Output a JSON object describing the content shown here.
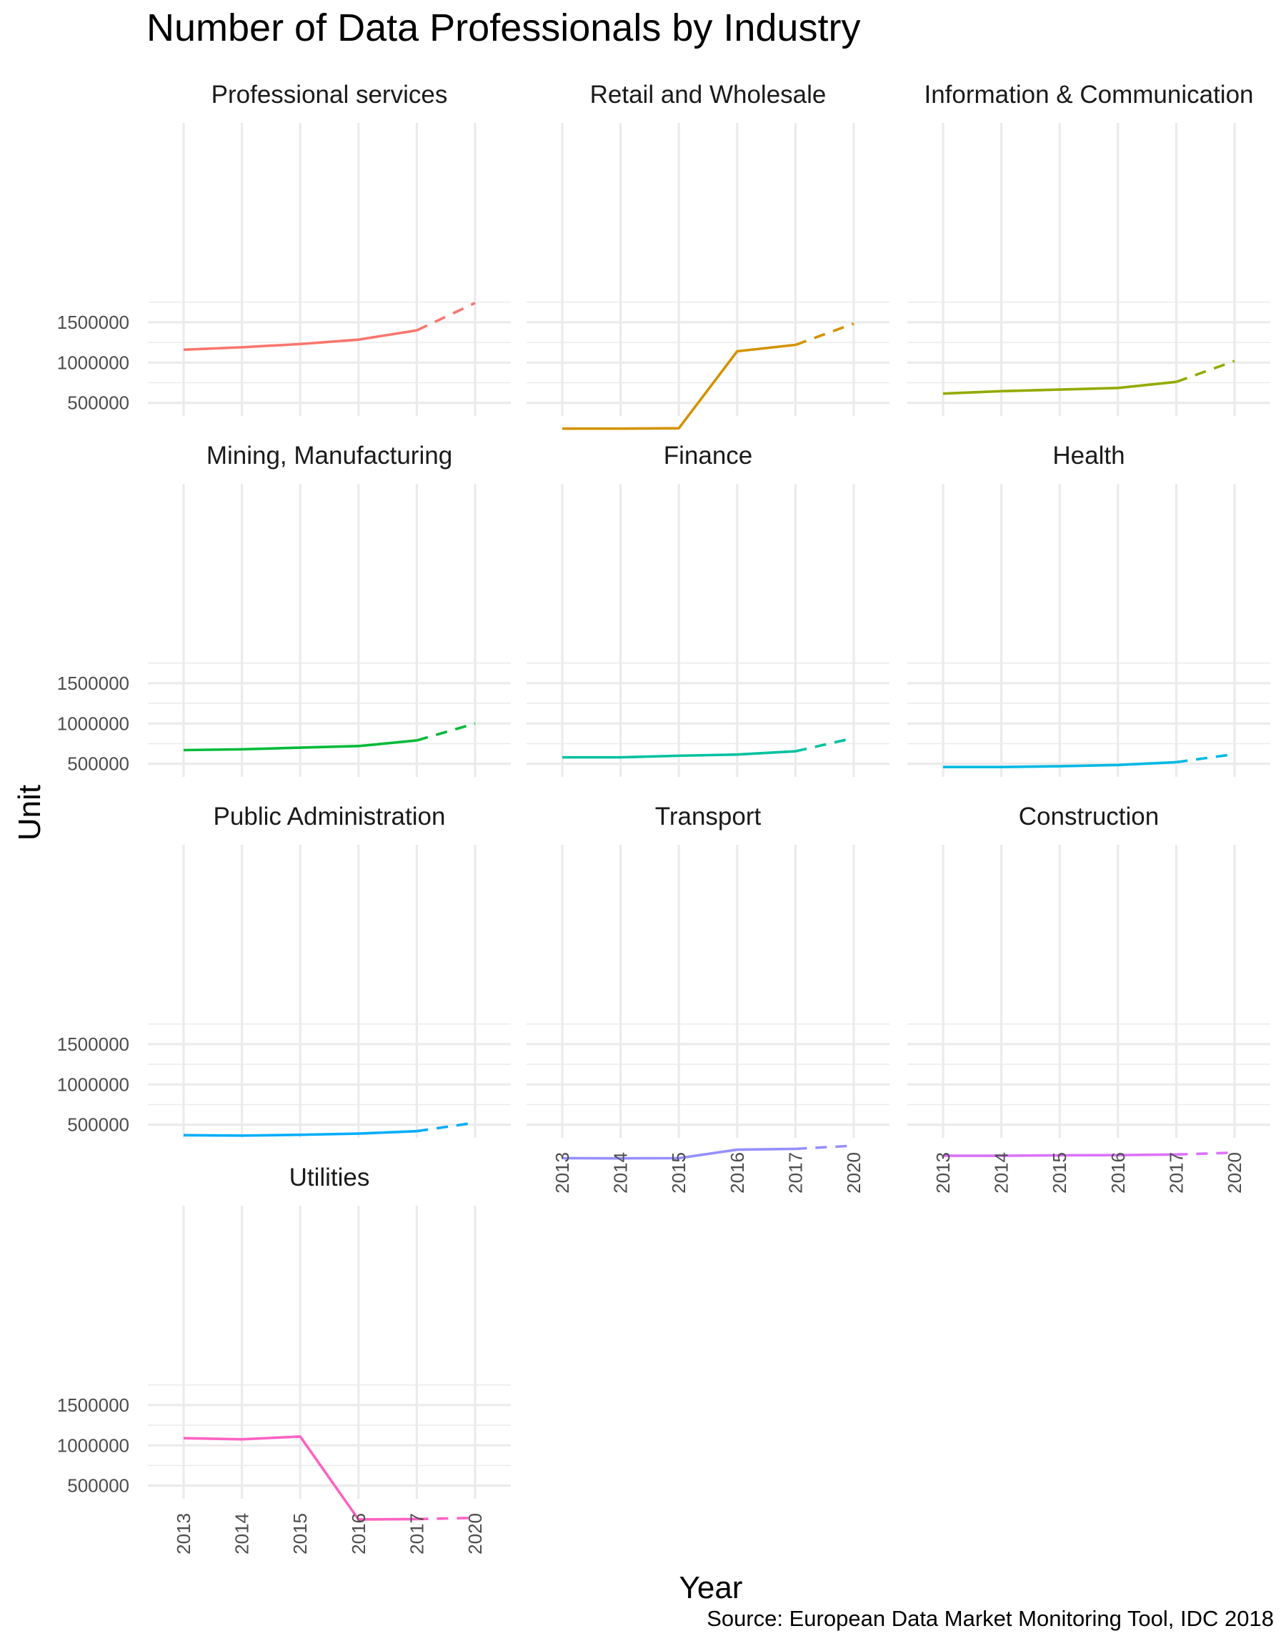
{
  "chart_data": {
    "type": "line",
    "title": "Number of Data Professionals by Industry",
    "xlabel": "Year",
    "ylabel": "Unit",
    "caption": "Source: European Data Market Monitoring Tool, IDC 2018",
    "x_categories": [
      "2013",
      "2014",
      "2015",
      "2016",
      "2017",
      "2020"
    ],
    "y_ticks": [
      500000,
      1000000,
      1500000
    ],
    "y_tick_labels": [
      "500000",
      "1000000",
      "1500000"
    ],
    "ylim": [
      0,
      1800000
    ],
    "grid": true,
    "line_styles": {
      "actual": "solid (2013-2017)",
      "forecast": "dashed (2017-2020)"
    },
    "panels": [
      {
        "name": "Professional services",
        "color": "#F8766D",
        "values": [
          1160000,
          1190000,
          1230000,
          1285000,
          1400000,
          1740000
        ]
      },
      {
        "name": "Retail and Wholesale",
        "color": "#D39200",
        "values": [
          180000,
          180000,
          185000,
          1140000,
          1220000,
          1485000
        ]
      },
      {
        "name": "Information & Communication",
        "color": "#93AA00",
        "values": [
          615000,
          645000,
          665000,
          685000,
          760000,
          1020000
        ]
      },
      {
        "name": "Mining, Manufacturing",
        "color": "#00BA38",
        "values": [
          670000,
          680000,
          700000,
          720000,
          790000,
          1000000
        ]
      },
      {
        "name": "Finance",
        "color": "#00C19F",
        "values": [
          580000,
          580000,
          600000,
          615000,
          655000,
          820000
        ]
      },
      {
        "name": "Health",
        "color": "#00B9E3",
        "values": [
          460000,
          460000,
          470000,
          485000,
          520000,
          620000
        ]
      },
      {
        "name": "Public Administration",
        "color": "#00ADFA",
        "values": [
          370000,
          365000,
          375000,
          390000,
          420000,
          525000
        ]
      },
      {
        "name": "Transport",
        "color": "#9590FF",
        "values": [
          85000,
          83000,
          85000,
          190000,
          200000,
          240000
        ]
      },
      {
        "name": "Construction",
        "color": "#DB72FB",
        "values": [
          115000,
          115000,
          120000,
          123000,
          130000,
          153000
        ]
      },
      {
        "name": "Utilities",
        "color": "#FF61C3",
        "values": [
          1090000,
          1075000,
          1110000,
          80000,
          85000,
          100000
        ]
      }
    ]
  }
}
